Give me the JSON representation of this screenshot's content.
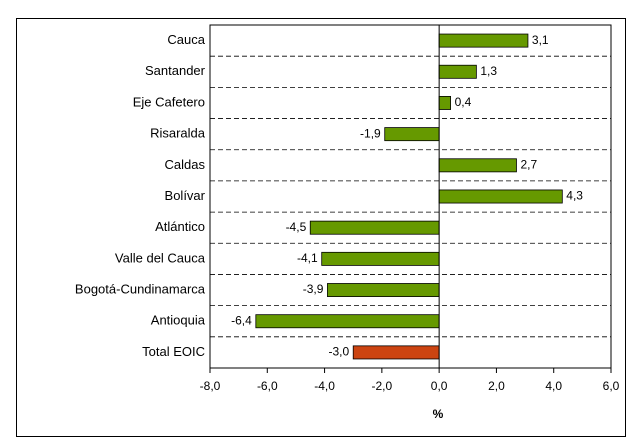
{
  "chart_data": {
    "type": "hbar",
    "x_label": "%",
    "categories": [
      "Cauca",
      "Santander",
      "Eje Cafetero",
      "Risaralda",
      "Caldas",
      "Bolívar",
      "Atlántico",
      "Valle del Cauca",
      "Bogotá-Cundinamarca",
      "Antioquia",
      "Total EOIC"
    ],
    "values": [
      3.1,
      1.3,
      0.4,
      -1.9,
      2.7,
      4.3,
      -4.5,
      -4.1,
      -3.9,
      -6.4,
      -3.0
    ],
    "value_labels": [
      "3,1",
      "1,3",
      "0,4",
      "-1,9",
      "2,7",
      "4,3",
      "-4,5",
      "-4,1",
      "-3,9",
      "-6,4",
      "-3,0"
    ],
    "colors": [
      "#669900",
      "#669900",
      "#669900",
      "#669900",
      "#669900",
      "#669900",
      "#669900",
      "#669900",
      "#669900",
      "#669900",
      "#cc4411"
    ],
    "xlim": [
      -8,
      6
    ],
    "xticks": [
      {
        "value": -8,
        "label": "-8,0"
      },
      {
        "value": -6,
        "label": "-6,0"
      },
      {
        "value": -4,
        "label": "-4,0"
      },
      {
        "value": -2,
        "label": "-2,0"
      },
      {
        "value": 0,
        "label": "0,0"
      },
      {
        "value": 2,
        "label": "2,0"
      },
      {
        "value": 4,
        "label": "4,0"
      },
      {
        "value": 6,
        "label": "6,0"
      }
    ]
  }
}
